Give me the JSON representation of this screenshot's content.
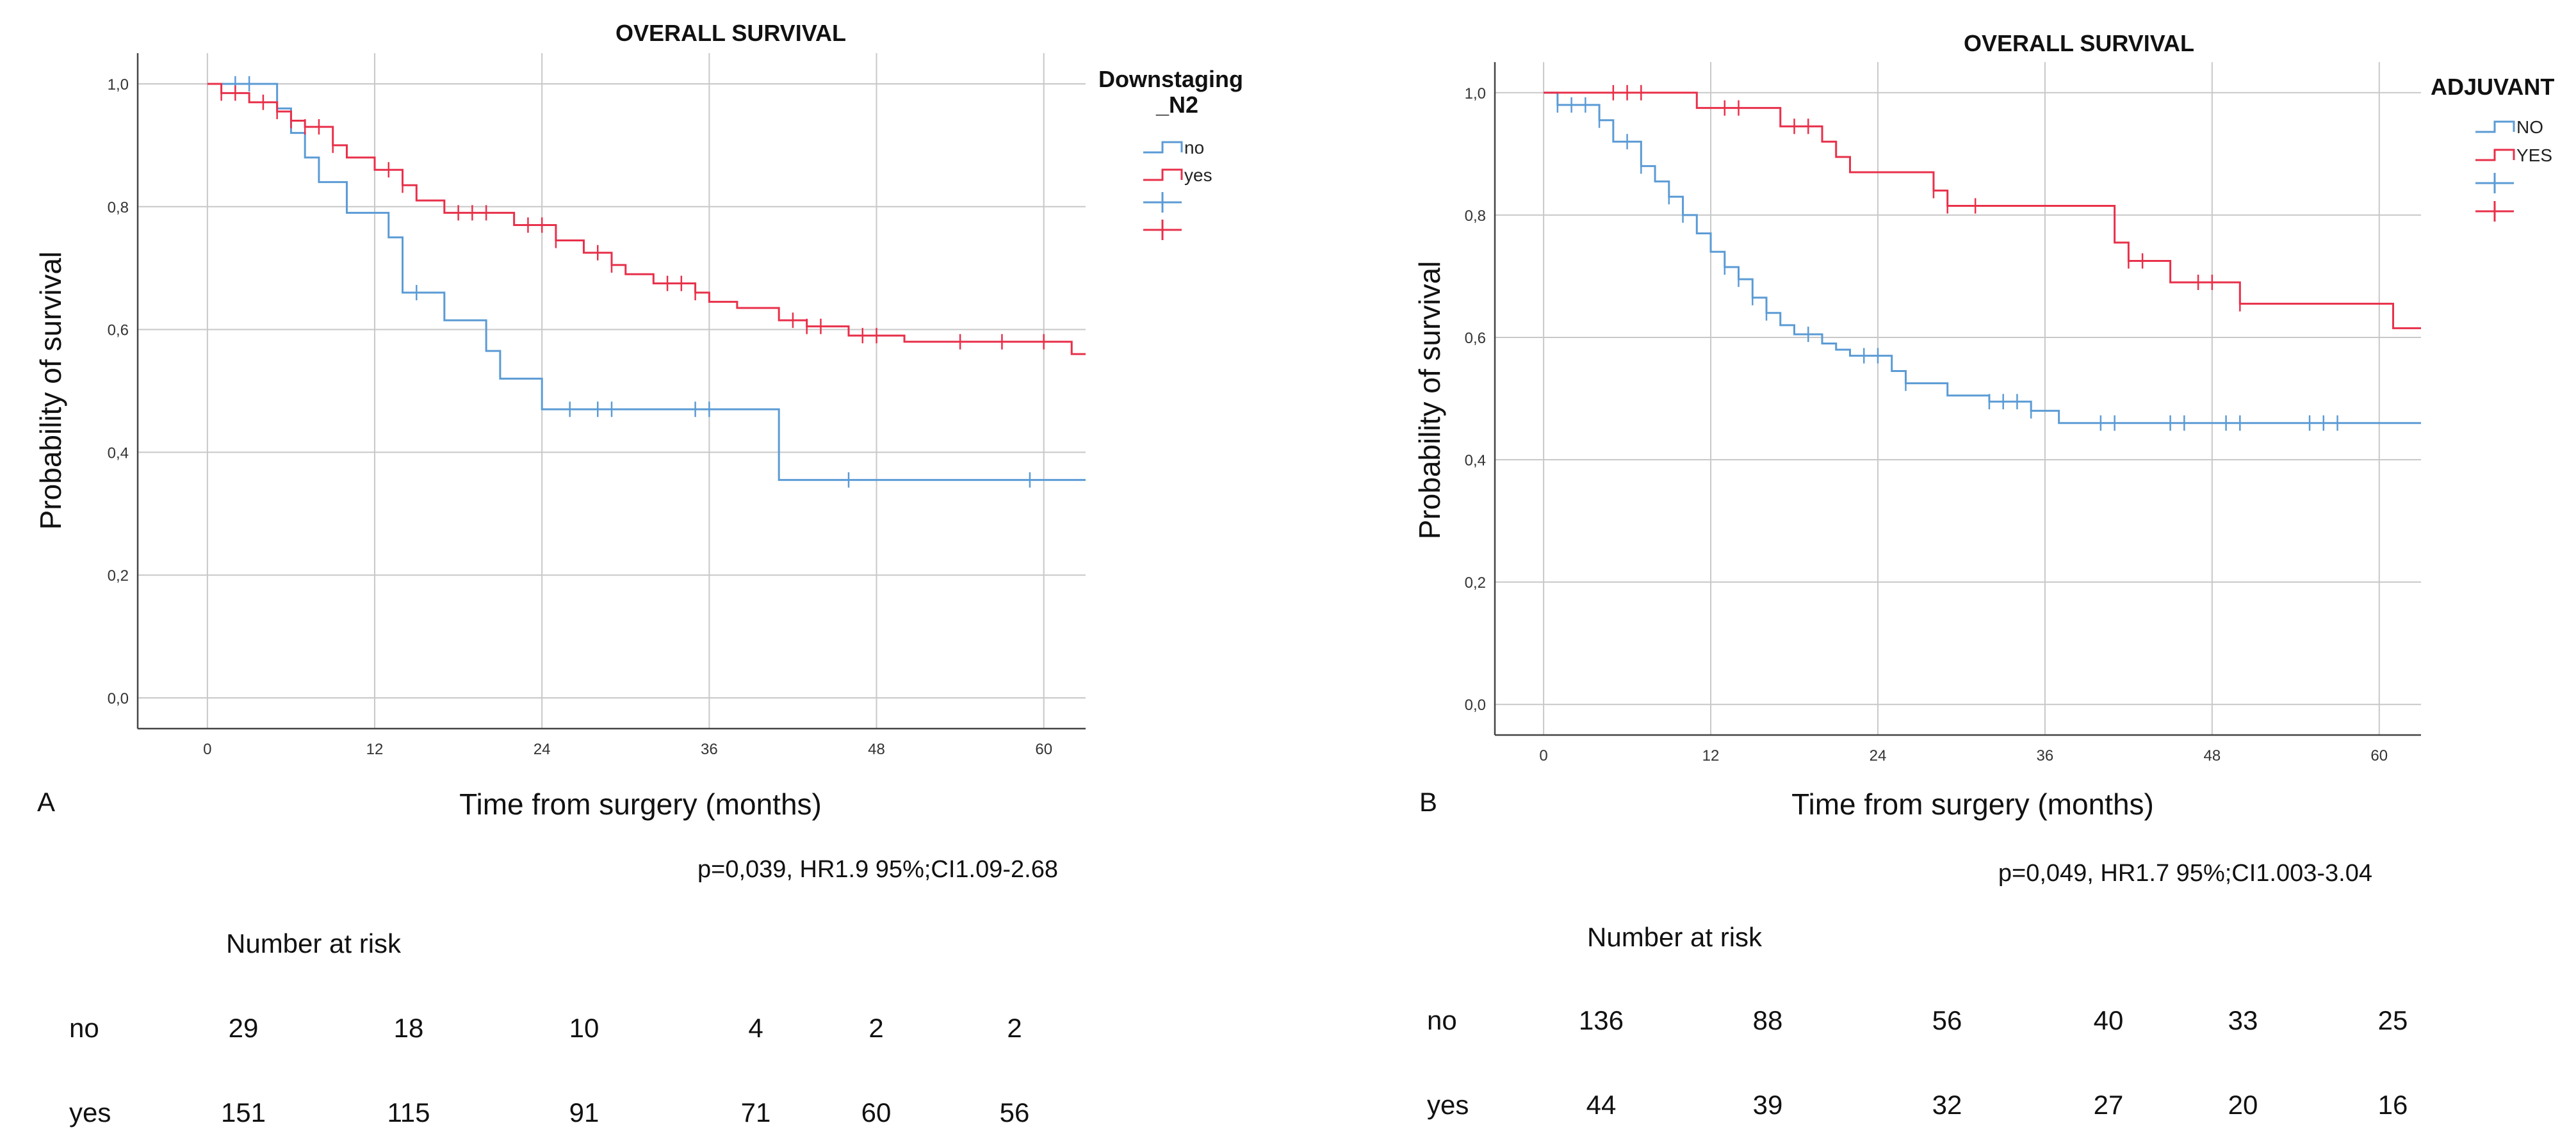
{
  "colors": {
    "no": "#5b9bd5",
    "yes": "#e8304a",
    "grid": "#c8c8c8",
    "axis": "#444444"
  },
  "chart_data": [
    {
      "type": "line",
      "panel_label": "A",
      "title": "OVERALL SURVIVAL",
      "xlabel": "Time from surgery (months)",
      "ylabel": "Probability of survival",
      "xlim": [
        -5,
        63
      ],
      "ylim": [
        -0.05,
        1.05
      ],
      "xticks": [
        0,
        12,
        24,
        36,
        48,
        60
      ],
      "yticks": [
        0.0,
        0.2,
        0.4,
        0.6,
        0.8,
        1.0
      ],
      "ytick_labels": [
        "0,0",
        "0,2",
        "0,4",
        "0,6",
        "0,8",
        "1,0"
      ],
      "grid": true,
      "legend": {
        "title": "Downstaging _N2",
        "title_lines": [
          "Downstaging",
          "_N2"
        ],
        "placement": "right",
        "entries": [
          "no",
          "yes"
        ]
      },
      "series": [
        {
          "name": "no",
          "color_key": "no",
          "steps": [
            [
              0,
              1.0
            ],
            [
              5,
              0.96
            ],
            [
              6,
              0.92
            ],
            [
              7,
              0.88
            ],
            [
              8,
              0.84
            ],
            [
              10,
              0.79
            ],
            [
              13,
              0.75
            ],
            [
              14,
              0.66
            ],
            [
              17,
              0.615
            ],
            [
              20,
              0.565
            ],
            [
              21,
              0.52
            ],
            [
              24,
              0.47
            ],
            [
              41,
              0.355
            ],
            [
              63,
              0.355
            ]
          ],
          "censor": [
            2,
            3,
            15,
            26,
            28,
            29,
            35,
            36,
            46,
            59
          ]
        },
        {
          "name": "yes",
          "color_key": "yes",
          "steps": [
            [
              0,
              1.0
            ],
            [
              1,
              0.985
            ],
            [
              3,
              0.97
            ],
            [
              5,
              0.955
            ],
            [
              6,
              0.94
            ],
            [
              7,
              0.93
            ],
            [
              9,
              0.9
            ],
            [
              10,
              0.88
            ],
            [
              12,
              0.86
            ],
            [
              14,
              0.835
            ],
            [
              15,
              0.81
            ],
            [
              17,
              0.79
            ],
            [
              22,
              0.77
            ],
            [
              25,
              0.745
            ],
            [
              27,
              0.725
            ],
            [
              29,
              0.705
            ],
            [
              30,
              0.69
            ],
            [
              32,
              0.675
            ],
            [
              35,
              0.66
            ],
            [
              36,
              0.645
            ],
            [
              38,
              0.635
            ],
            [
              41,
              0.615
            ],
            [
              43,
              0.605
            ],
            [
              46,
              0.59
            ],
            [
              50,
              0.58
            ],
            [
              62,
              0.56
            ],
            [
              63,
              0.56
            ]
          ],
          "censor": [
            1,
            2,
            4,
            5,
            6,
            7,
            8,
            9,
            13,
            14,
            18,
            19,
            20,
            23,
            24,
            25,
            28,
            29,
            33,
            34,
            35,
            42,
            43,
            44,
            47,
            48,
            54,
            57,
            60
          ]
        }
      ],
      "stat_text": "p=0,039, HR1.9 95%;CI1.09-2.68",
      "risk_table": {
        "header": "Number at risk",
        "rows": [
          {
            "label": "no",
            "values": [
              "29",
              "18",
              "10",
              "4",
              "2",
              "2"
            ]
          },
          {
            "label": "yes",
            "values": [
              "151",
              "115",
              "91",
              "71",
              "60",
              "56"
            ]
          }
        ]
      }
    },
    {
      "type": "line",
      "panel_label": "B",
      "title": "OVERALL SURVIVAL",
      "xlabel": "Time from surgery (months)",
      "ylabel": "Probability of survival",
      "xlim": [
        -3.5,
        63
      ],
      "ylim": [
        -0.05,
        1.05
      ],
      "xticks": [
        0,
        12,
        24,
        36,
        48,
        60
      ],
      "yticks": [
        0.0,
        0.2,
        0.4,
        0.6,
        0.8,
        1.0
      ],
      "ytick_labels": [
        "0,0",
        "0,2",
        "0,4",
        "0,6",
        "0,8",
        "1,0"
      ],
      "grid": true,
      "legend": {
        "title": "ADJUVANT",
        "title_lines": [
          "ADJUVANT"
        ],
        "placement": "right",
        "entries": [
          "NO",
          "YES"
        ]
      },
      "series": [
        {
          "name": "NO",
          "color_key": "no",
          "steps": [
            [
              0,
              1.0
            ],
            [
              1,
              0.98
            ],
            [
              4,
              0.955
            ],
            [
              5,
              0.92
            ],
            [
              7,
              0.88
            ],
            [
              8,
              0.855
            ],
            [
              9,
              0.83
            ],
            [
              10,
              0.8
            ],
            [
              11,
              0.77
            ],
            [
              12,
              0.74
            ],
            [
              13,
              0.715
            ],
            [
              14,
              0.695
            ],
            [
              15,
              0.665
            ],
            [
              16,
              0.64
            ],
            [
              17,
              0.62
            ],
            [
              18,
              0.605
            ],
            [
              20,
              0.59
            ],
            [
              21,
              0.58
            ],
            [
              22,
              0.57
            ],
            [
              25,
              0.545
            ],
            [
              26,
              0.525
            ],
            [
              29,
              0.505
            ],
            [
              32,
              0.495
            ],
            [
              35,
              0.48
            ],
            [
              37,
              0.46
            ],
            [
              63,
              0.46
            ]
          ],
          "censor": [
            1,
            2,
            3,
            4,
            6,
            7,
            9,
            10,
            13,
            14,
            15,
            16,
            19,
            23,
            24,
            26,
            32,
            33,
            34,
            35,
            40,
            41,
            45,
            46,
            49,
            50,
            55,
            56,
            57
          ]
        },
        {
          "name": "YES",
          "color_key": "yes",
          "steps": [
            [
              0,
              1.0
            ],
            [
              11,
              0.975
            ],
            [
              17,
              0.945
            ],
            [
              20,
              0.92
            ],
            [
              21,
              0.895
            ],
            [
              22,
              0.87
            ],
            [
              28,
              0.84
            ],
            [
              29,
              0.815
            ],
            [
              41,
              0.755
            ],
            [
              42,
              0.725
            ],
            [
              45,
              0.69
            ],
            [
              50,
              0.655
            ],
            [
              61,
              0.615
            ],
            [
              63,
              0.615
            ]
          ],
          "censor": [
            5,
            6,
            7,
            13,
            14,
            18,
            19,
            28,
            29,
            31,
            42,
            43,
            47,
            48,
            50
          ]
        }
      ],
      "stat_text": "p=0,049, HR1.7  95%;CI1.003-3.04",
      "risk_table": {
        "header": "Number at risk",
        "rows": [
          {
            "label": "no",
            "values": [
              "136",
              "88",
              "56",
              "40",
              "33",
              "25"
            ]
          },
          {
            "label": "yes",
            "values": [
              "44",
              "39",
              "32",
              "27",
              "20",
              "16"
            ]
          }
        ]
      }
    }
  ]
}
